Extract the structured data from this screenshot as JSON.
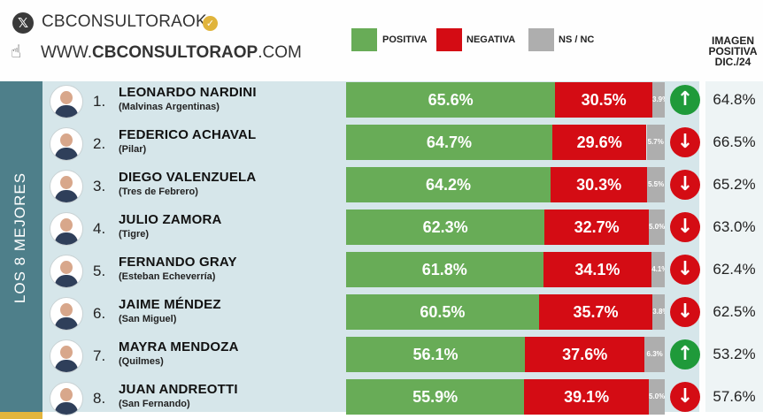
{
  "header": {
    "x_icon": "x-logo-icon",
    "handle": "CBCONSULTORAOK",
    "verified_icon": "verified-badge-icon",
    "pointer_icon": "hand-pointer-icon",
    "website_prefix": "WWW.",
    "website_domain": "CBCONSULTORAOP",
    "website_suffix": ".COM"
  },
  "legend": {
    "positiva": "POSITIVA",
    "negativa": "NEGATIVA",
    "nsnc": "NS / NC"
  },
  "colors": {
    "positiva": "#68ac57",
    "negativa": "#d40c14",
    "nsnc": "#aeaeae",
    "up": "#1f9a3a",
    "down": "#d40c14",
    "side": "#4e7f8a",
    "accent": "#e3b53d"
  },
  "side_label": "LOS 8 MEJORES",
  "image_column": {
    "line1": "IMAGEN",
    "line2": "POSITIVA",
    "line3": "DIC./24"
  },
  "chart_data": {
    "type": "bar",
    "stacked": true,
    "orientation": "horizontal",
    "series_names": [
      "POSITIVA",
      "NEGATIVA",
      "NS / NC"
    ],
    "rows": [
      {
        "rank": "1.",
        "name": "LEONARDO NARDINI",
        "place": "(Malvinas Argentinas)",
        "positiva": 65.6,
        "negativa": 30.5,
        "nsnc": 3.9,
        "positiva_label": "65.6%",
        "negativa_label": "30.5%",
        "nsnc_label": "3.9%",
        "trend": "up",
        "trend_icon": "arrow-up-icon",
        "dic24_label": "64.8%"
      },
      {
        "rank": "2.",
        "name": "FEDERICO ACHAVAL",
        "place": "(Pilar)",
        "positiva": 64.7,
        "negativa": 29.6,
        "nsnc": 5.7,
        "positiva_label": "64.7%",
        "negativa_label": "29.6%",
        "nsnc_label": "5.7%",
        "trend": "down",
        "trend_icon": "arrow-down-icon",
        "dic24_label": "66.5%"
      },
      {
        "rank": "3.",
        "name": "DIEGO VALENZUELA",
        "place": "(Tres de Febrero)",
        "positiva": 64.2,
        "negativa": 30.3,
        "nsnc": 5.5,
        "positiva_label": "64.2%",
        "negativa_label": "30.3%",
        "nsnc_label": "5.5%",
        "trend": "down",
        "trend_icon": "arrow-down-icon",
        "dic24_label": "65.2%"
      },
      {
        "rank": "4.",
        "name": "JULIO ZAMORA",
        "place": "(Tigre)",
        "positiva": 62.3,
        "negativa": 32.7,
        "nsnc": 5.0,
        "positiva_label": "62.3%",
        "negativa_label": "32.7%",
        "nsnc_label": "5.0%",
        "trend": "down",
        "trend_icon": "arrow-down-icon",
        "dic24_label": "63.0%"
      },
      {
        "rank": "5.",
        "name": "FERNANDO GRAY",
        "place": "(Esteban Echeverría)",
        "positiva": 61.8,
        "negativa": 34.1,
        "nsnc": 4.1,
        "positiva_label": "61.8%",
        "negativa_label": "34.1%",
        "nsnc_label": "4.1%",
        "trend": "down",
        "trend_icon": "arrow-down-icon",
        "dic24_label": "62.4%"
      },
      {
        "rank": "6.",
        "name": "JAIME MÉNDEZ",
        "place": "(San Miguel)",
        "positiva": 60.5,
        "negativa": 35.7,
        "nsnc": 3.8,
        "positiva_label": "60.5%",
        "negativa_label": "35.7%",
        "nsnc_label": "3.8%",
        "trend": "down",
        "trend_icon": "arrow-down-icon",
        "dic24_label": "62.5%"
      },
      {
        "rank": "7.",
        "name": "MAYRA MENDOZA",
        "place": "(Quilmes)",
        "positiva": 56.1,
        "negativa": 37.6,
        "nsnc": 6.3,
        "positiva_label": "56.1%",
        "negativa_label": "37.6%",
        "nsnc_label": "6.3%",
        "trend": "up",
        "trend_icon": "arrow-up-icon",
        "dic24_label": "53.2%"
      },
      {
        "rank": "8.",
        "name": "JUAN ANDREOTTI",
        "place": "(San Fernando)",
        "positiva": 55.9,
        "negativa": 39.1,
        "nsnc": 5.0,
        "positiva_label": "55.9%",
        "negativa_label": "39.1%",
        "nsnc_label": "5.0%",
        "trend": "down",
        "trend_icon": "arrow-down-icon",
        "dic24_label": "57.6%"
      }
    ]
  }
}
